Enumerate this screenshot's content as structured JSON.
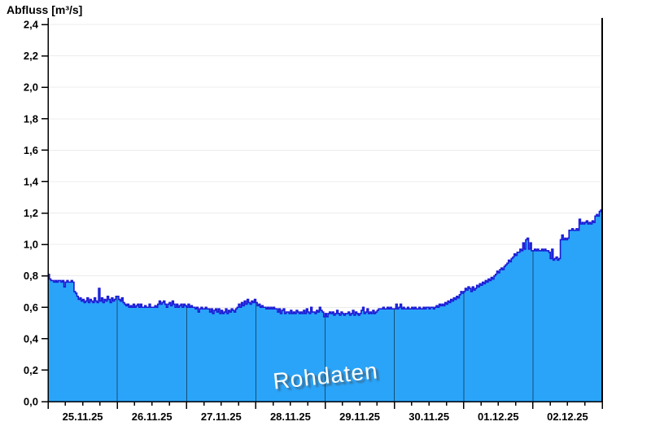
{
  "title": "Abfluss [m³/s]",
  "watermark": "Rohdaten",
  "chart_data": {
    "type": "area",
    "title": "Abfluss [m³/s]",
    "ylabel": "Abfluss [m³/s]",
    "ylim": [
      0,
      2.4
    ],
    "ytick_step": 0.2,
    "ytick_labels": [
      "0,0",
      "0,2",
      "0,4",
      "0,6",
      "0,8",
      "1,0",
      "1,2",
      "1,4",
      "1,6",
      "1,8",
      "2,0",
      "2,2",
      "2,4"
    ],
    "x_days": [
      "25.11.25",
      "26.11.25",
      "27.11.25",
      "28.11.25",
      "29.11.25",
      "30.11.25",
      "01.12.25",
      "02.12.25"
    ],
    "samples_per_day": 48,
    "sample_interval_minutes": 30,
    "grid": true,
    "legend_position": "none",
    "colors": {
      "fill": "#2AA4F9",
      "line": "#1B1BD6",
      "grid": "#ECECEC",
      "axis": "#000000",
      "day_separator": "rgba(0,0,0,0.52)",
      "label": "#000000",
      "watermark_text": "#FFFFFF"
    },
    "series": [
      {
        "name": "Rohdaten",
        "values": [
          0.81,
          0.78,
          0.77,
          0.77,
          0.76,
          0.77,
          0.76,
          0.77,
          0.77,
          0.76,
          0.77,
          0.73,
          0.76,
          0.77,
          0.76,
          0.76,
          0.77,
          0.76,
          0.7,
          0.69,
          0.67,
          0.65,
          0.66,
          0.64,
          0.65,
          0.63,
          0.64,
          0.66,
          0.63,
          0.65,
          0.64,
          0.63,
          0.66,
          0.64,
          0.63,
          0.72,
          0.64,
          0.66,
          0.63,
          0.65,
          0.64,
          0.67,
          0.65,
          0.63,
          0.66,
          0.64,
          0.65,
          0.67,
          0.67,
          0.65,
          0.64,
          0.66,
          0.63,
          0.62,
          0.61,
          0.62,
          0.6,
          0.61,
          0.6,
          0.62,
          0.6,
          0.61,
          0.62,
          0.6,
          0.62,
          0.6,
          0.6,
          0.61,
          0.6,
          0.6,
          0.62,
          0.6,
          0.6,
          0.6,
          0.61,
          0.6,
          0.62,
          0.64,
          0.62,
          0.63,
          0.64,
          0.62,
          0.6,
          0.62,
          0.63,
          0.61,
          0.64,
          0.62,
          0.6,
          0.62,
          0.6,
          0.61,
          0.62,
          0.6,
          0.62,
          0.61,
          0.6,
          0.62,
          0.6,
          0.61,
          0.6,
          0.6,
          0.59,
          0.6,
          0.57,
          0.59,
          0.6,
          0.59,
          0.59,
          0.6,
          0.59,
          0.59,
          0.57,
          0.59,
          0.56,
          0.58,
          0.59,
          0.57,
          0.59,
          0.56,
          0.58,
          0.56,
          0.57,
          0.59,
          0.56,
          0.58,
          0.57,
          0.59,
          0.58,
          0.57,
          0.59,
          0.6,
          0.62,
          0.6,
          0.63,
          0.61,
          0.64,
          0.62,
          0.65,
          0.63,
          0.62,
          0.64,
          0.63,
          0.65,
          0.63,
          0.61,
          0.62,
          0.6,
          0.61,
          0.6,
          0.6,
          0.59,
          0.6,
          0.59,
          0.6,
          0.59,
          0.6,
          0.59,
          0.59,
          0.57,
          0.59,
          0.56,
          0.58,
          0.59,
          0.56,
          0.57,
          0.57,
          0.56,
          0.58,
          0.56,
          0.57,
          0.56,
          0.58,
          0.57,
          0.56,
          0.57,
          0.56,
          0.58,
          0.56,
          0.59,
          0.57,
          0.56,
          0.6,
          0.57,
          0.57,
          0.56,
          0.58,
          0.57,
          0.6,
          0.58,
          0.57,
          0.54,
          0.56,
          0.54,
          0.56,
          0.57,
          0.56,
          0.57,
          0.55,
          0.56,
          0.58,
          0.56,
          0.55,
          0.57,
          0.56,
          0.55,
          0.56,
          0.56,
          0.57,
          0.55,
          0.56,
          0.58,
          0.55,
          0.57,
          0.56,
          0.55,
          0.56,
          0.58,
          0.6,
          0.56,
          0.57,
          0.59,
          0.56,
          0.57,
          0.56,
          0.58,
          0.56,
          0.57,
          0.58,
          0.59,
          0.59,
          0.59,
          0.6,
          0.59,
          0.59,
          0.6,
          0.59,
          0.6,
          0.59,
          0.59,
          0.59,
          0.62,
          0.59,
          0.6,
          0.62,
          0.59,
          0.6,
          0.59,
          0.59,
          0.6,
          0.59,
          0.59,
          0.6,
          0.59,
          0.6,
          0.59,
          0.59,
          0.6,
          0.59,
          0.59,
          0.6,
          0.59,
          0.6,
          0.6,
          0.59,
          0.6,
          0.6,
          0.59,
          0.6,
          0.61,
          0.6,
          0.62,
          0.61,
          0.62,
          0.61,
          0.63,
          0.62,
          0.64,
          0.63,
          0.65,
          0.64,
          0.66,
          0.65,
          0.67,
          0.66,
          0.68,
          0.7,
          0.69,
          0.7,
          0.72,
          0.71,
          0.73,
          0.72,
          0.7,
          0.73,
          0.71,
          0.72,
          0.74,
          0.73,
          0.75,
          0.74,
          0.76,
          0.75,
          0.77,
          0.76,
          0.78,
          0.77,
          0.79,
          0.78,
          0.8,
          0.81,
          0.83,
          0.82,
          0.84,
          0.85,
          0.84,
          0.86,
          0.87,
          0.88,
          0.9,
          0.89,
          0.91,
          0.92,
          0.94,
          0.93,
          0.95,
          0.95,
          0.97,
          0.96,
          1.01,
          0.97,
          1.03,
          1.04,
          0.97,
          1.01,
          0.96,
          0.96,
          0.97,
          0.96,
          0.97,
          0.96,
          0.96,
          0.97,
          0.96,
          0.97,
          0.96,
          0.96,
          0.95,
          0.91,
          0.97,
          0.9,
          0.91,
          0.92,
          0.9,
          0.91,
          1.03,
          1.06,
          1.03,
          1.04,
          1.03,
          1.04,
          1.09,
          1.09,
          1.1,
          1.09,
          1.09,
          1.1,
          1.09,
          1.16,
          1.13,
          1.14,
          1.13,
          1.14,
          1.15,
          1.13,
          1.14,
          1.13,
          1.15,
          1.14,
          1.18,
          1.19,
          1.18,
          1.21,
          1.22
        ]
      }
    ]
  }
}
